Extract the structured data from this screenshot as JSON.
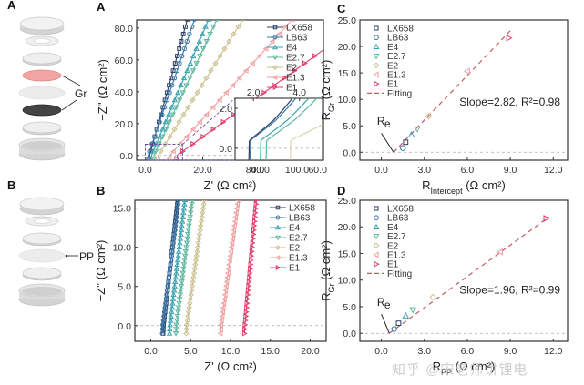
{
  "series_styles": [
    {
      "name": "LX658",
      "color": "#2f3e66",
      "marker": "square"
    },
    {
      "name": "LB63",
      "color": "#3a78a8",
      "marker": "circle"
    },
    {
      "name": "E4",
      "color": "#3aa3b0",
      "marker": "triangle-up"
    },
    {
      "name": "E2.7",
      "color": "#5fb8a0",
      "marker": "triangle-down"
    },
    {
      "name": "E2",
      "color": "#c9c08e",
      "marker": "diamond"
    },
    {
      "name": "E1.3",
      "color": "#f0a0a0",
      "marker": "triangle-left"
    },
    {
      "name": "E1",
      "color": "#e23c6a",
      "marker": "triangle-right"
    }
  ],
  "schematics": {
    "A": {
      "letter": "A",
      "label": "Gr",
      "layers": [
        "cap",
        "gasket",
        "spacer",
        "graphite-pink",
        "separator",
        "graphite-dark",
        "spacer",
        "case"
      ]
    },
    "B": {
      "letter": "B",
      "label": "PP",
      "layers": [
        "cap",
        "gasket",
        "spacer",
        "separator-pp",
        "spacer",
        "case"
      ]
    }
  },
  "chart_data": [
    {
      "id": "A",
      "type": "line",
      "letter": "A",
      "title": "",
      "xlabel": "Z' (Ω cm²)",
      "ylabel": "−Z'' (Ω cm²)",
      "xlim": [
        -3,
        62
      ],
      "ylim": [
        -3,
        85
      ],
      "xticks": [
        0,
        20,
        40,
        60
      ],
      "xtick_labels": [
        "0.0",
        "20.0",
        "40.0",
        "60.0"
      ],
      "yticks": [
        0,
        20,
        40,
        60,
        80
      ],
      "ytick_labels": [
        "0.0",
        "20.0",
        "40.0",
        "60.0",
        "80.0"
      ],
      "legend_position": "top-right",
      "series": [
        {
          "name": "LX658",
          "x0": 1.5,
          "slope": 6.5
        },
        {
          "name": "LB63",
          "x0": 1.0,
          "slope": 5.3
        },
        {
          "name": "E4",
          "x0": 2.2,
          "slope": 4.3
        },
        {
          "name": "E2.7",
          "x0": 3.0,
          "slope": 3.9
        },
        {
          "name": "E2",
          "x0": 4.5,
          "slope": 2.9
        },
        {
          "name": "E1.3",
          "x0": 8.5,
          "slope": 2.0
        },
        {
          "name": "E1",
          "x0": 11.0,
          "slope": 1.3
        }
      ],
      "zoom_box": {
        "x": [
          0,
          13
        ],
        "y": [
          -3,
          7
        ]
      },
      "inset": {
        "xlim": [
          1.2,
          5.0
        ],
        "ylim": [
          -0.6,
          2.5
        ],
        "xticks": [
          2.0,
          4.0
        ],
        "xtick_labels": [
          "2.0",
          "4.0"
        ],
        "yticks": [
          0,
          2
        ],
        "ytick_labels": [
          "0.0",
          "2.0"
        ],
        "bottom_tick_labels": [
          "80.0",
          "100.0"
        ]
      }
    },
    {
      "id": "B",
      "type": "line",
      "letter": "B",
      "title": "",
      "xlabel": "Z' (Ω cm²)",
      "ylabel": "−Z'' (Ω cm²)",
      "xlim": [
        -2,
        22
      ],
      "ylim": [
        -2,
        16
      ],
      "xticks": [
        0,
        5,
        10,
        15,
        20
      ],
      "xtick_labels": [
        "0.0",
        "5.0",
        "10.0",
        "15.0",
        "20.0"
      ],
      "yticks": [
        0,
        5,
        10,
        15
      ],
      "ytick_labels": [
        "0.0",
        "5.0",
        "10.0",
        "15.0"
      ],
      "legend_position": "top-right",
      "series": [
        {
          "name": "LX658",
          "x0": 1.6,
          "slope": 9.0
        },
        {
          "name": "LB63",
          "x0": 1.5,
          "slope": 8.0
        },
        {
          "name": "E4",
          "x0": 2.4,
          "slope": 8.5
        },
        {
          "name": "E2.7",
          "x0": 3.2,
          "slope": 8.0
        },
        {
          "name": "E2",
          "x0": 4.5,
          "slope": 7.2
        },
        {
          "name": "E1.3",
          "x0": 8.8,
          "slope": 7.5
        },
        {
          "name": "E1",
          "x0": 11.8,
          "slope": 11.0
        }
      ]
    },
    {
      "id": "C",
      "type": "scatter",
      "letter": "C",
      "xlabel": "R_Intercept (Ω cm²)",
      "ylabel": "R_Gr (Ω cm²)",
      "xlim": [
        -1.5,
        13
      ],
      "ylim": [
        -1.5,
        25
      ],
      "xticks": [
        0,
        3,
        6,
        9,
        12
      ],
      "xtick_labels": [
        "0.0",
        "3.0",
        "6.0",
        "9.0",
        "12.0"
      ],
      "yticks": [
        0,
        5,
        10,
        15,
        20,
        25
      ],
      "ytick_labels": [
        "0.0",
        "5.0",
        "10.0",
        "15.0",
        "20.0",
        "25.0"
      ],
      "legend_position": "top-left",
      "points": [
        {
          "name": "LX658",
          "x": 1.7,
          "y": 1.9
        },
        {
          "name": "LB63",
          "x": 1.5,
          "y": 0.8
        },
        {
          "name": "E4",
          "x": 2.1,
          "y": 3.3
        },
        {
          "name": "E2.7",
          "x": 2.5,
          "y": 4.4
        },
        {
          "name": "E2",
          "x": 3.3,
          "y": 6.8
        },
        {
          "name": "E1.3",
          "x": 6.0,
          "y": 15.3
        },
        {
          "name": "E1",
          "x": 8.9,
          "y": 21.6
        }
      ],
      "fit": {
        "label": "Fitting",
        "slope": 2.82,
        "intercept_x": 0.85,
        "x_end": 9.1
      },
      "annotation": "Slope=2.82, R²=0.98",
      "re_label": "Re"
    },
    {
      "id": "D",
      "type": "scatter",
      "letter": "D",
      "xlabel": "R_PP (Ω cm²)",
      "ylabel": "R_Gr (Ω cm²)",
      "xlim": [
        -1.5,
        13
      ],
      "ylim": [
        -1.5,
        25
      ],
      "xticks": [
        0,
        3,
        6,
        9,
        12
      ],
      "xtick_labels": [
        "0.0",
        "3.0",
        "6.0",
        "9.0",
        "12.0"
      ],
      "yticks": [
        0,
        5,
        10,
        15,
        20,
        25
      ],
      "ytick_labels": [
        "0.0",
        "5.0",
        "10.0",
        "15.0",
        "20.0",
        "25.0"
      ],
      "legend_position": "top-left",
      "points": [
        {
          "name": "LX658",
          "x": 1.2,
          "y": 1.9
        },
        {
          "name": "LB63",
          "x": 0.9,
          "y": 0.8
        },
        {
          "name": "E4",
          "x": 1.7,
          "y": 3.3
        },
        {
          "name": "E2.7",
          "x": 2.2,
          "y": 4.4
        },
        {
          "name": "E2",
          "x": 3.6,
          "y": 6.8
        },
        {
          "name": "E1.3",
          "x": 8.3,
          "y": 15.3
        },
        {
          "name": "E1",
          "x": 11.5,
          "y": 21.6
        }
      ],
      "fit": {
        "label": "Fitting",
        "slope": 1.96,
        "intercept_x": 0.55,
        "x_end": 11.7
      },
      "annotation": "Slope=1.96, R²=0.99",
      "re_label": "Re"
    }
  ],
  "watermark": "知乎 @宋老师讲锂电"
}
